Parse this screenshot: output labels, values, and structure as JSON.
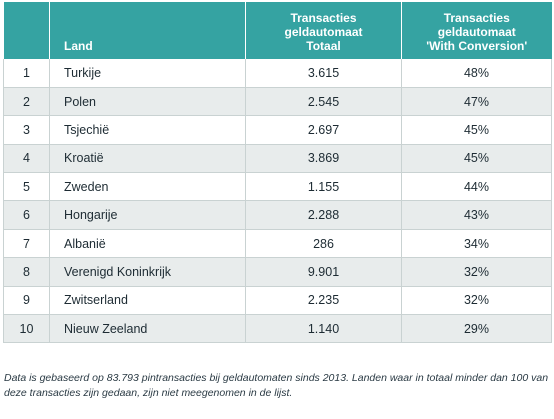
{
  "table": {
    "headers": {
      "rank": "",
      "land": "Land",
      "total": [
        "Transacties",
        "geldautomaat",
        "Totaal"
      ],
      "conversion": [
        "Transacties",
        "geldautomaat",
        "'With Conversion'"
      ]
    },
    "rows": [
      {
        "rank": "1",
        "land": "Turkije",
        "total": "3.615",
        "conversion": "48%"
      },
      {
        "rank": "2",
        "land": "Polen",
        "total": "2.545",
        "conversion": "47%"
      },
      {
        "rank": "3",
        "land": "Tsjechië",
        "total": "2.697",
        "conversion": "45%"
      },
      {
        "rank": "4",
        "land": "Kroatië",
        "total": "3.869",
        "conversion": "45%"
      },
      {
        "rank": "5",
        "land": "Zweden",
        "total": "1.155",
        "conversion": "44%"
      },
      {
        "rank": "6",
        "land": "Hongarije",
        "total": "2.288",
        "conversion": "43%"
      },
      {
        "rank": "7",
        "land": "Albanië",
        "total": "286",
        "conversion": "34%"
      },
      {
        "rank": "8",
        "land": "Verenigd Koninkrijk",
        "total": "9.901",
        "conversion": "32%"
      },
      {
        "rank": "9",
        "land": "Zwitserland",
        "total": "2.235",
        "conversion": "32%"
      },
      {
        "rank": "10",
        "land": "Nieuw Zeeland",
        "total": "1.140",
        "conversion": "29%"
      }
    ]
  },
  "footnote": "Data is gebaseerd op 83.793 pintransacties bij geldautomaten sinds 2013. Landen waar in totaal minder dan 100 van deze transacties zijn gedaan, zijn niet meegenomen in de lijst.",
  "colors": {
    "header_bg": "#35a3a2",
    "row_alt_bg": "#e8ecec"
  }
}
